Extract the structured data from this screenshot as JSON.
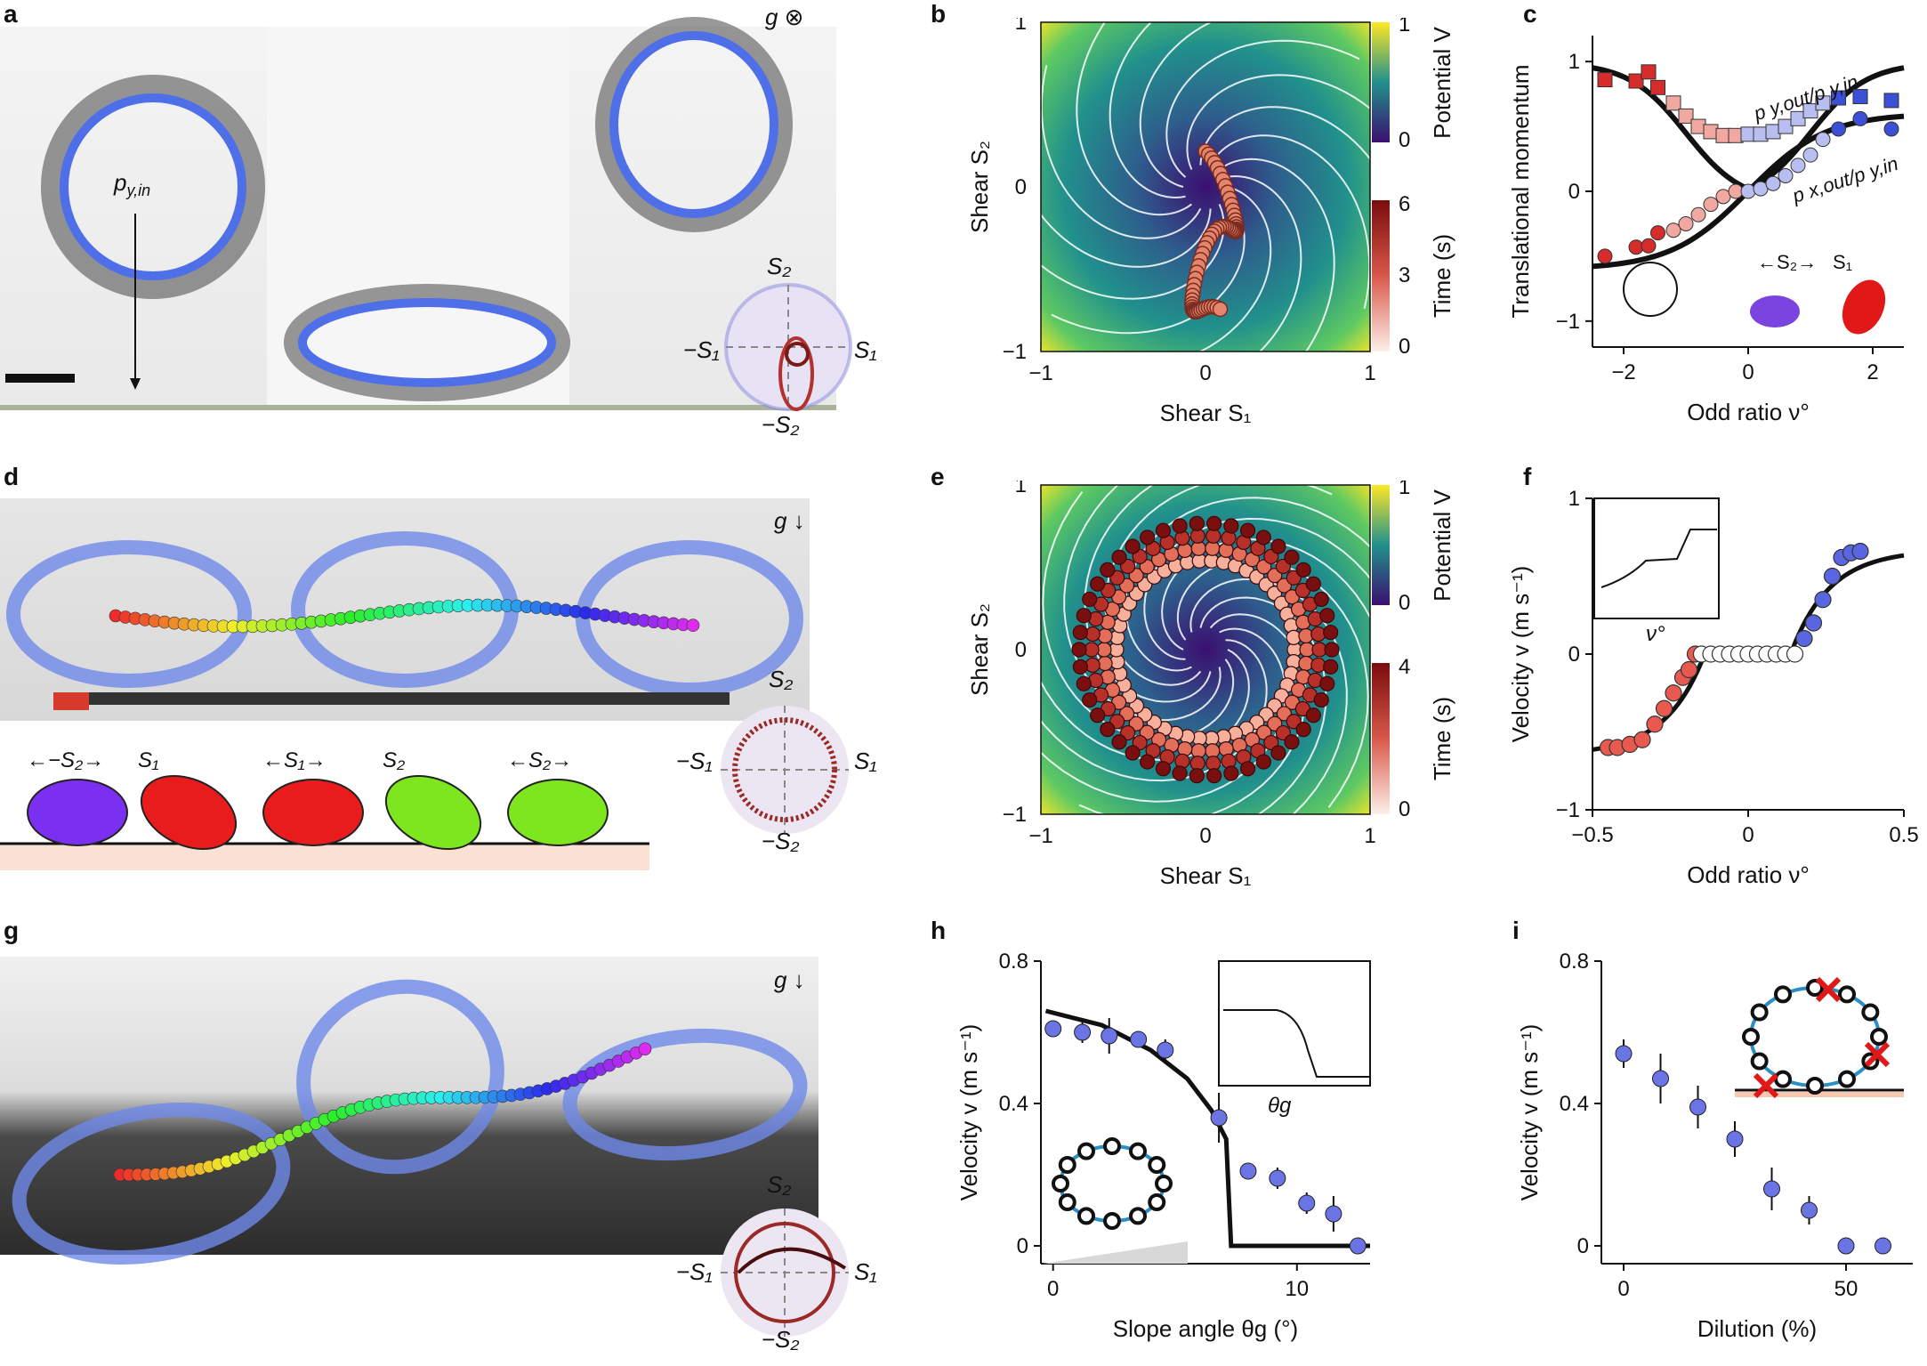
{
  "panels": {
    "a": {
      "letter": "a",
      "momentum_label": "p",
      "momentum_sub": "y,in",
      "gravity_label": "g ⊗"
    },
    "b": {
      "letter": "b"
    },
    "c": {
      "letter": "c"
    },
    "d": {
      "letter": "d",
      "gravity_label": "g ↓",
      "smileys": [
        {
          "label": "←−S₂→",
          "color": "#7b2ff0"
        },
        {
          "label": "S₁",
          "color": "#e81c1c"
        },
        {
          "label": "←S₁→",
          "color": "#e81c1c"
        },
        {
          "label": "S₂",
          "color": "#7ee61e"
        },
        {
          "label": "←S₂→",
          "color": "#7ee61e"
        }
      ]
    },
    "e": {
      "letter": "e"
    },
    "f": {
      "letter": "f"
    },
    "g": {
      "letter": "g",
      "gravity_label": "g ↓"
    },
    "h": {
      "letter": "h"
    },
    "i": {
      "letter": "i"
    }
  },
  "circle_labels": {
    "s2_top": "S₂",
    "s1_right": "S₁",
    "s1_left": "−S₁",
    "s2_bottom": "−S₂"
  },
  "colors": {
    "robot_blue": "#4f6fe8",
    "ring_blue": "#2a8fc4",
    "curve_black": "#111111"
  },
  "chart_data": [
    {
      "id": "b",
      "type": "heatmap",
      "xlabel": "Shear S1",
      "ylabel": "Shear S2",
      "xlim": [
        -1,
        1
      ],
      "ylim": [
        -1,
        1
      ],
      "xticks": [
        "−1",
        "0",
        "1"
      ],
      "yticks": [
        "−1",
        "0",
        "1"
      ],
      "colorbars": [
        {
          "label": "Potential V",
          "ticks": [
            "1",
            "0"
          ],
          "range": [
            0,
            1
          ]
        },
        {
          "label": "Time (s)",
          "ticks": [
            "6",
            "3",
            "0"
          ],
          "range": [
            0,
            6
          ]
        }
      ]
    },
    {
      "id": "c",
      "type": "scatter",
      "xlabel": "Odd ratio ν°",
      "ylabel": "Translational momentum",
      "xlim": [
        -2.5,
        2.5
      ],
      "ylim": [
        -1.2,
        1.2
      ],
      "xticks": [
        "−2",
        "0",
        "2"
      ],
      "yticks": [
        "1",
        "0",
        "−1"
      ],
      "curve_labels": [
        "p y,out/p y,in",
        "p x,out/p y,in"
      ],
      "inset_labels": [
        "←S₂→",
        "S₁"
      ],
      "series": [
        {
          "name": "p y,out/p y,in",
          "marker": "square",
          "x": [
            -2.3,
            -1.8,
            -1.6,
            -1.45,
            -1.2,
            -1.0,
            -0.8,
            -0.6,
            -0.4,
            -0.2,
            0,
            0.2,
            0.4,
            0.6,
            0.8,
            1.0,
            1.2,
            1.45,
            1.8,
            2.3
          ],
          "y": [
            0.86,
            0.85,
            0.92,
            0.8,
            0.68,
            0.58,
            0.5,
            0.46,
            0.43,
            0.43,
            0.44,
            0.44,
            0.46,
            0.5,
            0.56,
            0.62,
            0.68,
            0.72,
            0.73,
            0.7
          ]
        },
        {
          "name": "p x,out/p y,in",
          "marker": "circle",
          "x": [
            -2.3,
            -1.8,
            -1.6,
            -1.45,
            -1.2,
            -1.0,
            -0.8,
            -0.6,
            -0.4,
            -0.2,
            0,
            0.2,
            0.4,
            0.6,
            0.8,
            1.0,
            1.2,
            1.45,
            1.8,
            2.3
          ],
          "y": [
            -0.5,
            -0.43,
            -0.42,
            -0.32,
            -0.3,
            -0.25,
            -0.18,
            -0.1,
            -0.04,
            0,
            0,
            0.02,
            0.06,
            0.12,
            0.2,
            0.28,
            0.4,
            0.48,
            0.56,
            0.48
          ]
        }
      ]
    },
    {
      "id": "e",
      "type": "heatmap",
      "xlabel": "Shear S1",
      "ylabel": "Shear S2",
      "xlim": [
        -1,
        1
      ],
      "ylim": [
        -1,
        1
      ],
      "xticks": [
        "−1",
        "0",
        "1"
      ],
      "yticks": [
        "−1",
        "0",
        "1"
      ],
      "colorbars": [
        {
          "label": "Potential V",
          "ticks": [
            "1",
            "0"
          ],
          "range": [
            0,
            1
          ]
        },
        {
          "label": "Time (s)",
          "ticks": [
            "4",
            "0"
          ],
          "range": [
            0,
            4
          ]
        }
      ]
    },
    {
      "id": "f",
      "type": "scatter",
      "xlabel": "Odd ratio ν°",
      "ylabel": "Velocity v (m s⁻¹)",
      "xlim": [
        -0.5,
        0.5
      ],
      "ylim": [
        -1,
        1
      ],
      "xticks": [
        "−0.5",
        "0",
        "0.5"
      ],
      "yticks": [
        "1",
        "0",
        "−1"
      ],
      "inset_xlabel": "ν°",
      "series": [
        {
          "name": "",
          "x": [
            -0.45,
            -0.42,
            -0.38,
            -0.34,
            -0.3,
            -0.27,
            -0.24,
            -0.21,
            -0.19,
            -0.17,
            -0.15,
            -0.12,
            -0.09,
            -0.06,
            -0.03,
            0,
            0.03,
            0.06,
            0.09,
            0.12,
            0.15,
            0.18,
            0.21,
            0.24,
            0.27,
            0.3,
            0.33,
            0.36
          ],
          "y": [
            -0.6,
            -0.6,
            -0.58,
            -0.55,
            -0.45,
            -0.35,
            -0.25,
            -0.15,
            -0.1,
            0,
            0,
            0,
            0,
            0,
            0,
            0,
            0,
            0,
            0,
            0,
            0,
            0.1,
            0.2,
            0.35,
            0.5,
            0.62,
            0.65,
            0.66
          ]
        }
      ]
    },
    {
      "id": "h",
      "type": "scatter",
      "xlabel": "Slope angle θg (°)",
      "ylabel": "Velocity v (m s⁻¹)",
      "xlim": [
        -0.5,
        13
      ],
      "ylim": [
        -0.05,
        0.8
      ],
      "xticks": [
        "0",
        "10"
      ],
      "yticks": [
        "0.8",
        "0.4",
        "0"
      ],
      "inset_xlabel": "θg",
      "series": [
        {
          "name": "",
          "x": [
            0,
            1.2,
            2.3,
            3.5,
            4.6,
            6.8,
            8,
            9.2,
            10.4,
            11.5,
            12.5
          ],
          "y": [
            0.61,
            0.6,
            0.59,
            0.58,
            0.55,
            0.36,
            0.21,
            0.19,
            0.12,
            0.09,
            0
          ],
          "err": [
            0.02,
            0.03,
            0.05,
            0.02,
            0.03,
            0.07,
            0.02,
            0.03,
            0.03,
            0.05,
            0.01
          ]
        }
      ],
      "theory_curve": {
        "x": [
          -0.3,
          2,
          4,
          5.5,
          6.5,
          7.1,
          7.3,
          7.6,
          13
        ],
        "y": [
          0.66,
          0.62,
          0.55,
          0.47,
          0.38,
          0.3,
          0.0,
          0.0,
          0.0
        ]
      }
    },
    {
      "id": "i",
      "type": "scatter",
      "xlabel": "Dilution (%)",
      "ylabel": "Velocity v (m s⁻¹)",
      "xlim": [
        -5,
        65
      ],
      "ylim": [
        -0.05,
        0.8
      ],
      "xticks": [
        "0",
        "50"
      ],
      "yticks": [
        "0.8",
        "0.4",
        "0"
      ],
      "series": [
        {
          "name": "",
          "x": [
            0,
            8.3,
            16.7,
            25,
            33.3,
            41.7,
            50,
            58.3
          ],
          "y": [
            0.54,
            0.47,
            0.39,
            0.3,
            0.16,
            0.1,
            0,
            0
          ],
          "err": [
            0.04,
            0.07,
            0.06,
            0.05,
            0.06,
            0.04,
            0.005,
            0.005
          ]
        }
      ]
    }
  ]
}
